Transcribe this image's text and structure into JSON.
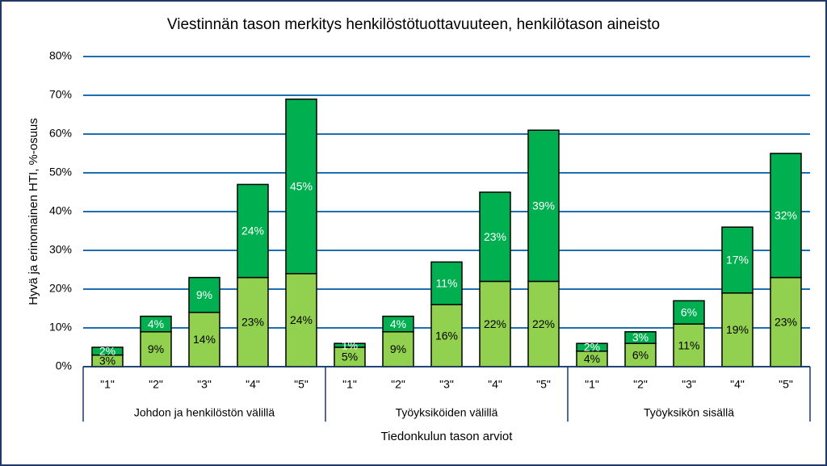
{
  "chart_data": {
    "type": "stacked-bar",
    "title": "Viestinnän tason merkitys henkilöstötuottavuuteen, henkilötason aineisto",
    "y_label": "Hyvä ja erinomainen HTI, %-osuus",
    "x_label": "Tiedonkulun tason arviot",
    "categories": [
      "\"1\"",
      "\"2\"",
      "\"3\"",
      "\"4\"",
      "\"5\"",
      "\"1\"",
      "\"2\"",
      "\"3\"",
      "\"4\"",
      "\"5\"",
      "\"1\"",
      "\"2\"",
      "\"3\"",
      "\"4\"",
      "\"5\""
    ],
    "groups": [
      "Johdon ja henkilöstön välillä",
      "Työyksiköiden välillä",
      "Työyksikön sisällä"
    ],
    "series": [
      {
        "color": "#92d050",
        "label_color": "#000000",
        "values": [
          3,
          9,
          14,
          23,
          24,
          5,
          9,
          16,
          22,
          22,
          4,
          6,
          11,
          19,
          23
        ],
        "value_labels": [
          "3%",
          "9%",
          "14%",
          "23%",
          "24%",
          "5%",
          "9%",
          "16%",
          "22%",
          "22%",
          "4%",
          "6%",
          "11%",
          "19%",
          "23%"
        ]
      },
      {
        "color": "#00b050",
        "label_color": "#ffffff",
        "values": [
          2,
          4,
          9,
          24,
          45,
          1,
          4,
          11,
          23,
          39,
          2,
          3,
          6,
          17,
          32
        ],
        "value_labels": [
          "2%",
          "4%",
          "9%",
          "24%",
          "45%",
          "1%",
          "4%",
          "11%",
          "23%",
          "39%",
          "2%",
          "3%",
          "6%",
          "17%",
          "32%"
        ]
      }
    ],
    "ylim": [
      0,
      80
    ],
    "yticks": [
      {
        "value": 0,
        "label": "0%"
      },
      {
        "value": 10,
        "label": "10%"
      },
      {
        "value": 20,
        "label": "20%"
      },
      {
        "value": 30,
        "label": "30%"
      },
      {
        "value": 40,
        "label": "40%"
      },
      {
        "value": 50,
        "label": "50%"
      },
      {
        "value": 60,
        "label": "60%"
      },
      {
        "value": 70,
        "label": "70%"
      },
      {
        "value": 80,
        "label": "80%"
      }
    ],
    "grid": true,
    "grid_color": "#1f6fb0"
  }
}
